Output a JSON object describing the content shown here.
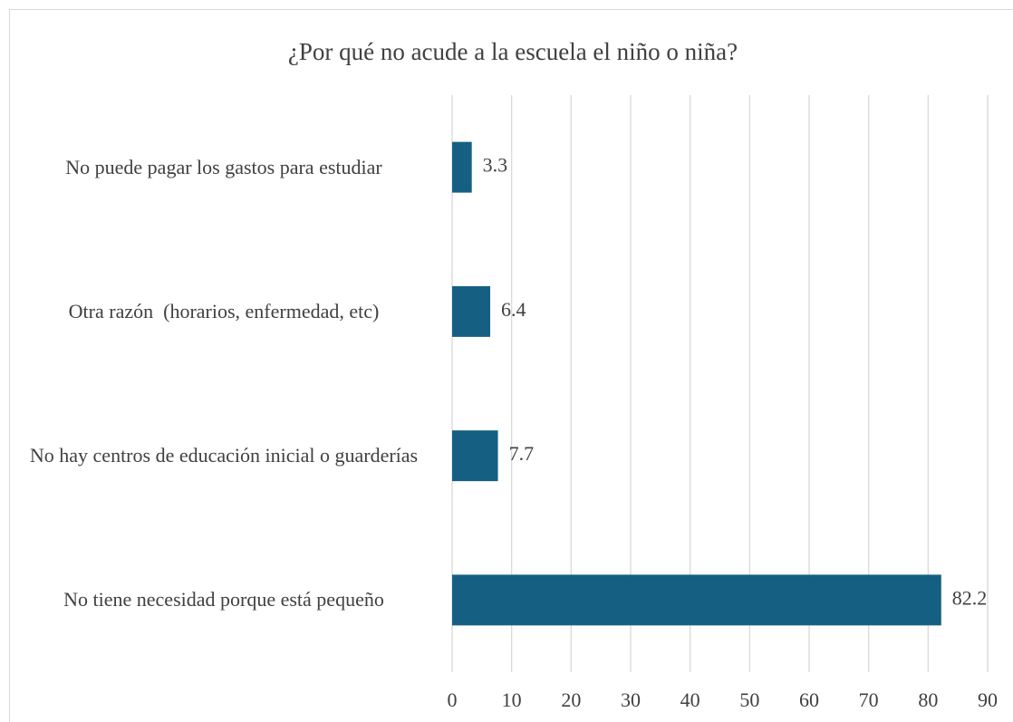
{
  "chart_data": {
    "type": "barh",
    "title": "¿Por qué no acude a la escuela el niño o niña?",
    "categories": [
      "No puede pagar los gastos para estudiar",
      "Otra razón  (horarios, enfermedad, etc)",
      "No hay centros de educación inicial o guarderías",
      "No tiene necesidad porque está pequeño"
    ],
    "values": [
      3.3,
      6.4,
      7.7,
      82.2
    ],
    "color": "#155f82",
    "xlim": [
      0,
      90
    ],
    "xticks": [
      0,
      10,
      20,
      30,
      40,
      50,
      60,
      70,
      80,
      90
    ],
    "grid": true
  }
}
